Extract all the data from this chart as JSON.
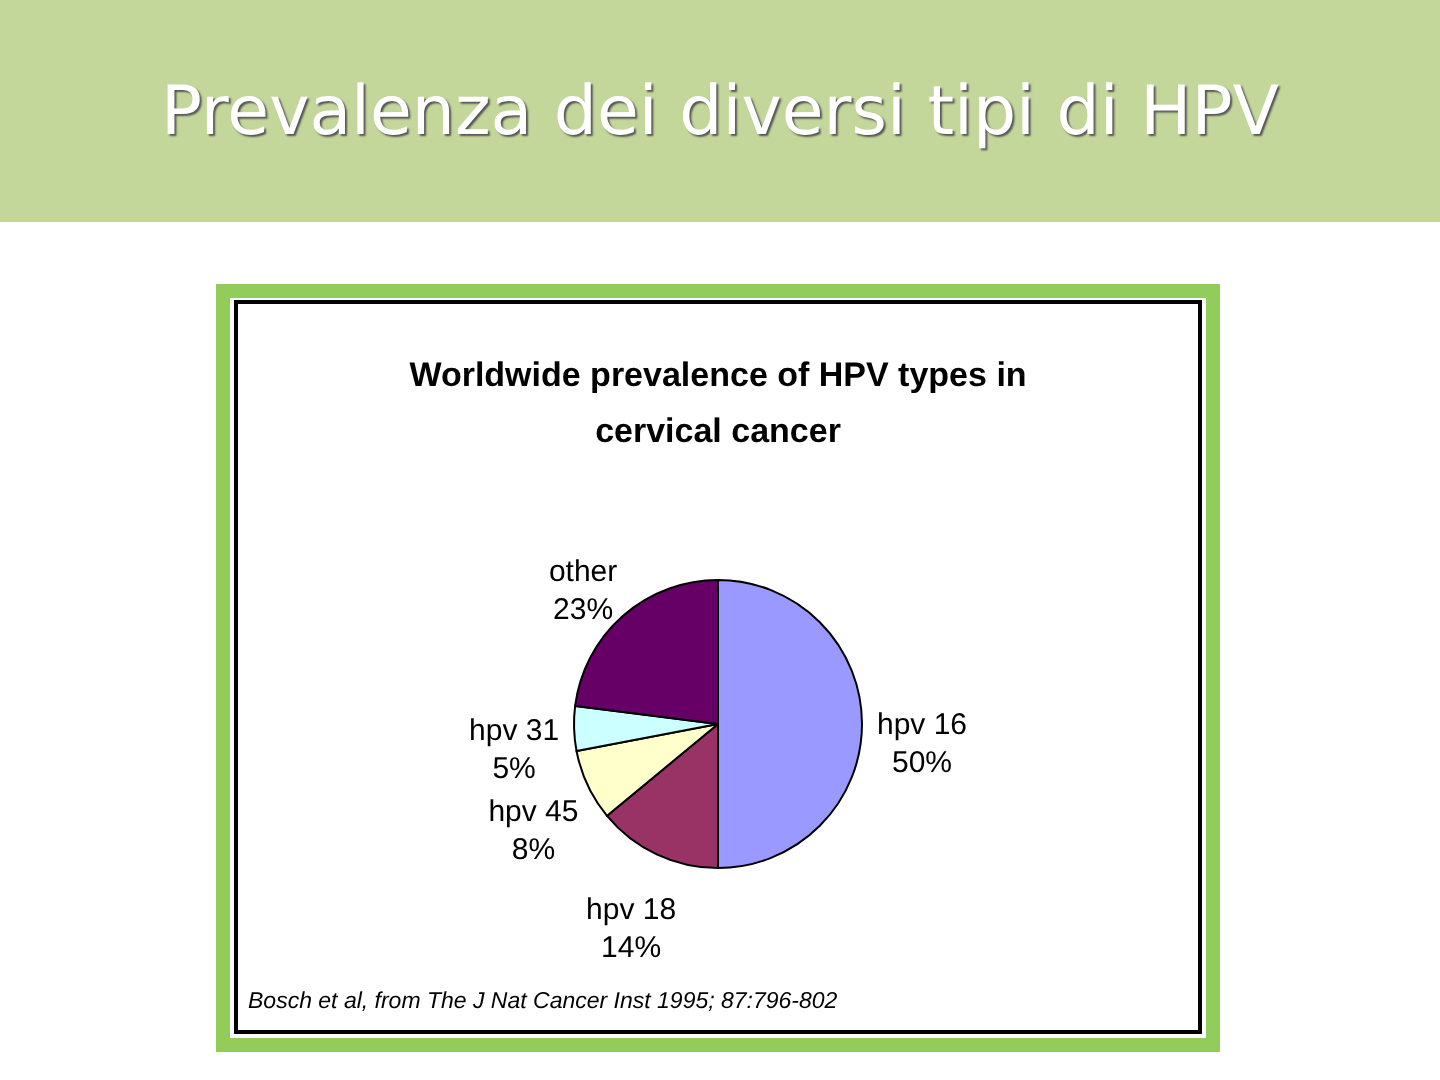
{
  "chart_data": {
    "type": "pie",
    "title": "Prevalenza dei diversi tipi di HPV",
    "subtitle": "Worldwide prevalence of HPV types in cervical cancer",
    "categories": [
      "hpv 16",
      "hpv 18",
      "hpv 45",
      "hpv 31",
      "other"
    ],
    "values": [
      50,
      14,
      8,
      5,
      23
    ],
    "value_labels": [
      "50%",
      "14%",
      "8%",
      "5%",
      "23%"
    ],
    "colors": [
      "#9999ff",
      "#993366",
      "#ffffcc",
      "#ccffff",
      "#660066"
    ],
    "annotations": [
      "Bosch et al, from The J Nat Cancer Inst 1995; 87:796-802"
    ]
  }
}
